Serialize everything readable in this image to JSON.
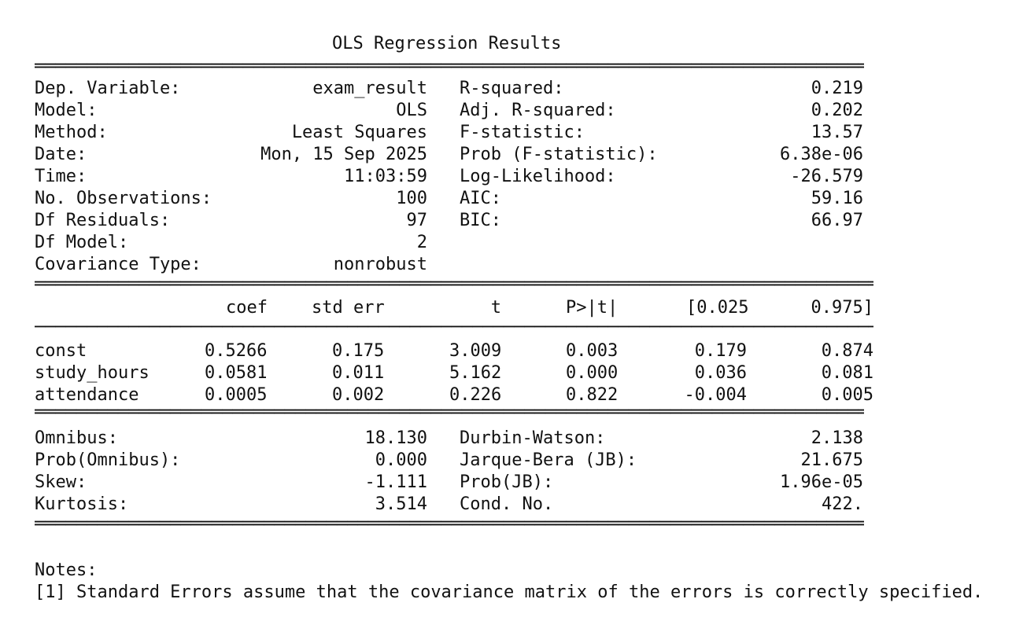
{
  "title": "OLS Regression Results",
  "top_left": [
    {
      "label": "Dep. Variable:",
      "value": "exam_result"
    },
    {
      "label": "Model:",
      "value": "OLS"
    },
    {
      "label": "Method:",
      "value": "Least Squares"
    },
    {
      "label": "Date:",
      "value": "Mon, 15 Sep 2025"
    },
    {
      "label": "Time:",
      "value": "11:03:59"
    },
    {
      "label": "No. Observations:",
      "value": "100"
    },
    {
      "label": "Df Residuals:",
      "value": "97"
    },
    {
      "label": "Df Model:",
      "value": "2"
    },
    {
      "label": "Covariance Type:",
      "value": "nonrobust"
    }
  ],
  "top_right": [
    {
      "label": "R-squared:",
      "value": "0.219"
    },
    {
      "label": "Adj. R-squared:",
      "value": "0.202"
    },
    {
      "label": "F-statistic:",
      "value": "13.57"
    },
    {
      "label": "Prob (F-statistic):",
      "value": "6.38e-06"
    },
    {
      "label": "Log-Likelihood:",
      "value": "-26.579"
    },
    {
      "label": "AIC:",
      "value": "59.16"
    },
    {
      "label": "BIC:",
      "value": "66.97"
    }
  ],
  "coef_table": {
    "headers": [
      "coef",
      "std err",
      "t",
      "P>|t|",
      "[0.025",
      "0.975]"
    ],
    "rows": [
      {
        "name": "const",
        "values": [
          "0.5266",
          "0.175",
          "3.009",
          "0.003",
          "0.179",
          "0.874"
        ]
      },
      {
        "name": "study_hours",
        "values": [
          "0.0581",
          "0.011",
          "5.162",
          "0.000",
          "0.036",
          "0.081"
        ]
      },
      {
        "name": "attendance",
        "values": [
          "0.0005",
          "0.002",
          "0.226",
          "0.822",
          "-0.004",
          "0.005"
        ]
      }
    ]
  },
  "bottom_left": [
    {
      "label": "Omnibus:",
      "value": "18.130"
    },
    {
      "label": "Prob(Omnibus):",
      "value": "0.000"
    },
    {
      "label": "Skew:",
      "value": "-1.111"
    },
    {
      "label": "Kurtosis:",
      "value": "3.514"
    }
  ],
  "bottom_right": [
    {
      "label": "Durbin-Watson:",
      "value": "2.138"
    },
    {
      "label": "Jarque-Bera (JB):",
      "value": "21.675"
    },
    {
      "label": "Prob(JB):",
      "value": "1.96e-05"
    },
    {
      "label": "Cond. No.",
      "value": "422."
    }
  ],
  "notes": {
    "heading": "Notes:",
    "items": [
      "[1] Standard Errors assume that the covariance matrix of the errors is correctly specified."
    ]
  }
}
